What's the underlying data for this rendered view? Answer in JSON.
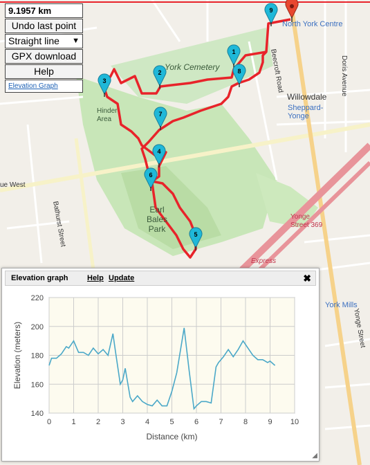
{
  "controls": {
    "distance": "9.1957 km",
    "undo_label": "Undo last point",
    "mode_selected": "Straight line",
    "gpx_label": "GPX download",
    "help_label": "Help",
    "elevation_link": "Elevation Graph"
  },
  "map_labels": {
    "north_york_centre": "North York Centre",
    "york_cemetery": "York Cemetery",
    "willowdale": "Willowdale",
    "sheppard_yonge": "Sheppard-Yonge",
    "hinder_area": "Hinder Area",
    "earl_bales_park": "Earl Bales Park",
    "bathurst_street": "Bathurst Street",
    "yonge_street_369": "Yonge Street 369",
    "york_mills": "York Mills",
    "yonge_street": "Yonge Street",
    "doris_avenue": "Doris Avenue",
    "beecroft_road": "Beecroft Road",
    "express": "Express",
    "ue_west": "ue West"
  },
  "markers": [
    "1",
    "2",
    "3",
    "4",
    "5",
    "6",
    "7",
    "8",
    "9"
  ],
  "colors": {
    "route": "#e8232a",
    "marker": "#1fb8d8",
    "end_marker": "#e8472f"
  },
  "elevation_panel": {
    "title": "Elevation graph",
    "help": "Help",
    "update": "Update",
    "close": "✖"
  },
  "chart_data": {
    "type": "line",
    "xlabel": "Distance (km)",
    "ylabel": "Elevation (meters)",
    "xlim": [
      0,
      10
    ],
    "ylim": [
      140,
      220
    ],
    "xticks": [
      0,
      1,
      2,
      3,
      4,
      5,
      6,
      7,
      8,
      9,
      10
    ],
    "yticks": [
      140,
      160,
      180,
      200,
      220
    ],
    "grid": true,
    "series": [
      {
        "color": "#4aa8c8",
        "x": [
          0,
          0.1,
          0.3,
          0.5,
          0.7,
          0.8,
          1.0,
          1.2,
          1.4,
          1.6,
          1.8,
          2.0,
          2.2,
          2.4,
          2.6,
          2.7,
          2.9,
          3.0,
          3.1,
          3.3,
          3.4,
          3.6,
          3.8,
          4.0,
          4.2,
          4.4,
          4.6,
          4.8,
          5.0,
          5.2,
          5.5,
          5.7,
          5.9,
          6.0,
          6.2,
          6.4,
          6.6,
          6.8,
          6.9,
          7.1,
          7.3,
          7.5,
          7.7,
          7.9,
          8.1,
          8.3,
          8.5,
          8.7,
          8.9,
          9.0,
          9.2
        ],
        "values": [
          173,
          178,
          178,
          181,
          186,
          185,
          190,
          182,
          182,
          180,
          185,
          181,
          184,
          180,
          195,
          183,
          160,
          163,
          171,
          151,
          148,
          152,
          148,
          146,
          145,
          149,
          145,
          145,
          155,
          168,
          199,
          170,
          143,
          145,
          148,
          148,
          147,
          172,
          175,
          179,
          184,
          179,
          184,
          190,
          185,
          180,
          177,
          177,
          175,
          176,
          173
        ]
      }
    ]
  }
}
